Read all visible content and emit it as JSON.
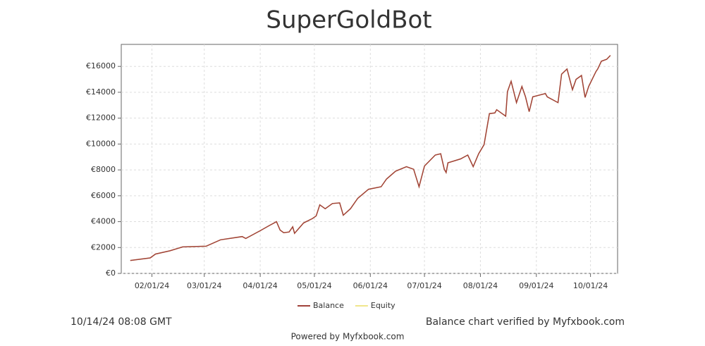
{
  "chart_data": {
    "type": "line",
    "title": "SuperGoldBot",
    "x": [
      "01/20/24",
      "01/31/24",
      "02/03/24",
      "02/11/24",
      "02/18/24",
      "03/02/24",
      "03/10/24",
      "03/22/24",
      "03/24/24",
      "03/28/24",
      "04/01/24",
      "04/06/24",
      "04/10/24",
      "04/12/24",
      "04/14/24",
      "04/17/24",
      "04/19/24",
      "04/20/24",
      "04/25/24",
      "04/30/24",
      "05/02/24",
      "05/04/24",
      "05/07/24",
      "05/11/24",
      "05/15/24",
      "05/17/24",
      "05/21/24",
      "05/25/24",
      "05/31/24",
      "06/07/24",
      "06/10/24",
      "06/15/24",
      "06/21/24",
      "06/25/24",
      "06/28/24",
      "07/01/24",
      "07/07/24",
      "07/10/24",
      "07/12/24",
      "07/13/24",
      "07/14/24",
      "07/21/24",
      "07/25/24",
      "07/28/24",
      "07/31/24",
      "08/03/24",
      "08/06/24",
      "08/09/24",
      "08/10/24",
      "08/15/24",
      "08/16/24",
      "08/18/24",
      "08/21/24",
      "08/24/24",
      "08/26/24",
      "08/28/24",
      "08/30/24",
      "09/06/24",
      "09/07/24",
      "09/13/24",
      "09/15/24",
      "09/18/24",
      "09/21/24",
      "09/23/24",
      "09/26/24",
      "09/28/24",
      "09/30/24",
      "10/04/24",
      "10/05/24",
      "10/07/24",
      "10/10/24",
      "10/12/24"
    ],
    "series": [
      {
        "name": "Equity",
        "color": "#f0e68c",
        "values": [
          1000,
          1200,
          1500,
          1750,
          2050,
          2100,
          2600,
          2850,
          2700,
          3000,
          3300,
          3700,
          4000,
          3350,
          3150,
          3200,
          3600,
          3100,
          3900,
          4250,
          4450,
          5300,
          5000,
          5400,
          5450,
          4500,
          5000,
          5800,
          6500,
          6700,
          7300,
          7900,
          8250,
          8050,
          6700,
          8300,
          9150,
          9250,
          8050,
          7800,
          8550,
          8850,
          9150,
          8250,
          9250,
          9950,
          12350,
          12400,
          12650,
          12150,
          14050,
          14850,
          13200,
          14450,
          13650,
          12500,
          13650,
          13900,
          13650,
          13200,
          15400,
          15800,
          14200,
          15000,
          15300,
          13600,
          14450,
          15600,
          15800,
          16400,
          16550,
          16850
        ]
      },
      {
        "name": "Balance",
        "color": "#a0413a",
        "values": [
          1000,
          1200,
          1500,
          1750,
          2050,
          2100,
          2600,
          2850,
          2700,
          3000,
          3300,
          3700,
          4000,
          3350,
          3150,
          3200,
          3600,
          3100,
          3900,
          4250,
          4450,
          5300,
          5000,
          5400,
          5450,
          4500,
          5000,
          5800,
          6500,
          6700,
          7300,
          7900,
          8250,
          8050,
          6700,
          8300,
          9150,
          9250,
          8050,
          7800,
          8550,
          8850,
          9150,
          8250,
          9250,
          9950,
          12350,
          12400,
          12650,
          12150,
          14050,
          14850,
          13200,
          14450,
          13650,
          12500,
          13650,
          13900,
          13650,
          13200,
          15400,
          15800,
          14200,
          15000,
          15300,
          13600,
          14450,
          15600,
          15800,
          16400,
          16550,
          16850
        ]
      }
    ],
    "xlim": [
      "01/15/24",
      "10/16/24"
    ],
    "xticks": [
      "02/01/24",
      "03/01/24",
      "04/01/24",
      "05/01/24",
      "06/01/24",
      "07/01/24",
      "08/01/24",
      "09/01/24",
      "10/01/24"
    ],
    "ylim": [
      0,
      17700
    ],
    "yticks": [
      {
        "value": 0,
        "label": "€0"
      },
      {
        "value": 2000,
        "label": "€2000"
      },
      {
        "value": 4000,
        "label": "€4000"
      },
      {
        "value": 6000,
        "label": "€6000"
      },
      {
        "value": 8000,
        "label": "€8000"
      },
      {
        "value": 10000,
        "label": "€10000"
      },
      {
        "value": 12000,
        "label": "€12000"
      },
      {
        "value": 14000,
        "label": "€14000"
      },
      {
        "value": 16000,
        "label": "€16000"
      }
    ],
    "grid": true
  },
  "footer": {
    "timestamp": "10/14/24 08:08 GMT",
    "verified": "Balance chart verified by Myfxbook.com",
    "powered": "Powered by Myfxbook.com"
  }
}
